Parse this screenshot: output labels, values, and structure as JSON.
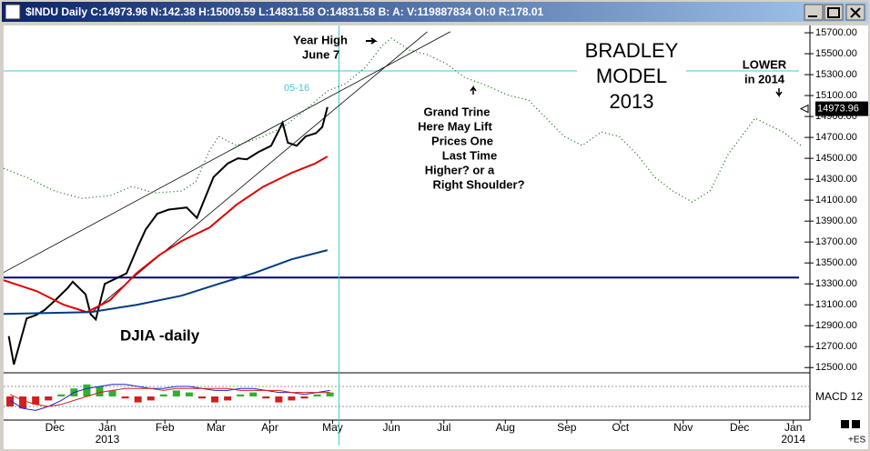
{
  "chart_data": {
    "type": "line",
    "title": "$INDU Daily C:14973.96 N:142.38 H:15009.59 L:14831.58 O:14831.58 B: A: V:119887834 OI:0 R:178.01",
    "ylim": [
      12450,
      15770
    ],
    "yticks": [
      {
        "value": 12500,
        "label": "12500.00"
      },
      {
        "value": 12700,
        "label": "12700.00"
      },
      {
        "value": 12900,
        "label": "12900.00"
      },
      {
        "value": 13100,
        "label": "13100.00"
      },
      {
        "value": 13300,
        "label": "13300.00"
      },
      {
        "value": 13500,
        "label": "13500.00"
      },
      {
        "value": 13700,
        "label": "13700.00"
      },
      {
        "value": 13900,
        "label": "13900.00"
      },
      {
        "value": 14100,
        "label": "14100.00"
      },
      {
        "value": 14300,
        "label": "14300.00"
      },
      {
        "value": 14500,
        "label": "14500.00"
      },
      {
        "value": 14700,
        "label": "14700.00"
      },
      {
        "value": 14900,
        "label": "14900.00"
      },
      {
        "value": 15100,
        "label": "15100.00"
      },
      {
        "value": 15300,
        "label": "15300.00"
      },
      {
        "value": 15500,
        "label": "15500.00"
      },
      {
        "value": 15700,
        "label": "15700.00"
      }
    ],
    "xlim": [
      0,
      63
    ],
    "xticks": [
      {
        "value": 4.0,
        "label": "Dec"
      },
      {
        "value": 8.1,
        "label": "Jan"
      },
      {
        "value": 12.6,
        "label": "Feb"
      },
      {
        "value": 16.6,
        "label": "Mar"
      },
      {
        "value": 20.8,
        "label": "Apr"
      },
      {
        "value": 25.7,
        "label": "May"
      },
      {
        "value": 30.3,
        "label": "Jun"
      },
      {
        "value": 34.4,
        "label": "Jul"
      },
      {
        "value": 39.2,
        "label": "Aug"
      },
      {
        "value": 44.0,
        "label": "Sep"
      },
      {
        "value": 48.2,
        "label": "Oct"
      },
      {
        "value": 53.1,
        "label": "Nov"
      },
      {
        "value": 57.5,
        "label": "Dec"
      },
      {
        "value": 61.7,
        "label": "Jan"
      }
    ],
    "year_labels": [
      {
        "value": 8.1,
        "label": "2013"
      },
      {
        "value": 61.7,
        "label": "2014"
      }
    ],
    "last_price": {
      "value": 14973.96,
      "label": "14973.96"
    },
    "series": [
      {
        "color": "#000000",
        "x": [
          0.4,
          0.8,
          1.8,
          2.5,
          3.2,
          4.0,
          5.0,
          5.4,
          6.4,
          6.8,
          7.2,
          7.9,
          9.6,
          10.5,
          11.1,
          12.0,
          12.9,
          14.3,
          15.1,
          15.4,
          16.4,
          17.5,
          18.3,
          19.0,
          19.9,
          20.9,
          21.8,
          22.2,
          22.9,
          23.6,
          24.4,
          24.9,
          25.3
        ],
        "values": [
          12800,
          12530,
          12970,
          13000,
          13050,
          13140,
          13260,
          13320,
          13200,
          13010,
          12960,
          13300,
          13400,
          13660,
          13820,
          13970,
          14010,
          14030,
          13930,
          14020,
          14320,
          14450,
          14500,
          14490,
          14560,
          14620,
          14840,
          14650,
          14620,
          14710,
          14740,
          14800,
          14990
        ]
      },
      {
        "color": "#e00000",
        "x": [
          0.0,
          2.6,
          4.7,
          6.5,
          8.3,
          10.4,
          12.2,
          13.9,
          16.1,
          18.2,
          20.3,
          22.5,
          24.3,
          25.3
        ],
        "values": [
          13335,
          13230,
          13100,
          13030,
          13143,
          13404,
          13578,
          13709,
          13839,
          14057,
          14230,
          14361,
          14448,
          14517
        ]
      },
      {
        "color": "#003a80",
        "x": [
          0.0,
          6.8,
          10.4,
          13.9,
          16.8,
          19.6,
          22.5,
          25.3
        ],
        "values": [
          13013,
          13030,
          13100,
          13187,
          13300,
          13404,
          13535,
          13622
        ]
      },
      {
        "color": "#006000",
        "dotted": true,
        "x": [
          0,
          1.8,
          4,
          6.1,
          8.3,
          10,
          11.8,
          13.9,
          15,
          16.1,
          16.8,
          18.2,
          20.3,
          21.8,
          23.2,
          25.3,
          26.7,
          28.2,
          29.6,
          30.3,
          31.7,
          33.1,
          34.6,
          36,
          37.4,
          39.5,
          41,
          42.4,
          43.8,
          45.2,
          46.7,
          48.1,
          49.5,
          50.9,
          52.3,
          53.8,
          55.2,
          56.6,
          58.7,
          60.9,
          62.3
        ],
        "values": [
          14404,
          14317,
          14187,
          14117,
          14143,
          14230,
          14170,
          14187,
          14274,
          14578,
          14709,
          14622,
          14709,
          14796,
          14926,
          15143,
          15213,
          15361,
          15578,
          15648,
          15535,
          15491,
          15404,
          15274,
          15213,
          15100,
          15057,
          14883,
          14709,
          14622,
          14752,
          14709,
          14535,
          14317,
          14187,
          14083,
          14187,
          14535,
          14883,
          14752,
          14622
        ]
      }
    ],
    "hlines": [
      {
        "value": 13360,
        "color": "#00007a"
      },
      {
        "value": 15335,
        "color": "#40c8d8"
      }
    ],
    "vline": {
      "value": 26.2,
      "color": "#40c8d8"
    },
    "trendlines": [
      {
        "x": [
          0,
          34.9
        ],
        "values": [
          13410,
          15710
        ]
      },
      {
        "x": [
          6.8,
          33.1
        ],
        "values": [
          13020,
          15710
        ]
      }
    ],
    "macd": {
      "label": "MACD 12",
      "ylim": [
        -1,
        1
      ],
      "histogram": [
        -0.5,
        -0.6,
        -0.4,
        -0.2,
        0.1,
        0.4,
        0.6,
        0.5,
        0.3,
        -0.1,
        -0.3,
        -0.2,
        0.1,
        0.3,
        0.2,
        -0.1,
        -0.3,
        -0.2,
        0.1,
        0.2,
        -0.1,
        -0.3,
        -0.2,
        -0.1,
        0.1,
        0.2
      ],
      "macd_line": [
        -0.2,
        -0.6,
        -0.7,
        -0.5,
        -0.2,
        0.2,
        0.4,
        0.5,
        0.6,
        0.6,
        0.5,
        0.4,
        0.4,
        0.5,
        0.5,
        0.4,
        0.3,
        0.3,
        0.4,
        0.4,
        0.3,
        0.2,
        0.2,
        0.1,
        0.2,
        0.3
      ],
      "signal_line": [
        0.1,
        -0.2,
        -0.4,
        -0.5,
        -0.4,
        -0.2,
        0.0,
        0.2,
        0.3,
        0.4,
        0.4,
        0.4,
        0.3,
        0.4,
        0.4,
        0.4,
        0.4,
        0.4,
        0.3,
        0.3,
        0.3,
        0.3,
        0.2,
        0.2,
        0.2,
        0.2
      ]
    },
    "annotations": {
      "year_high": "Year High",
      "june": "June 7",
      "date_mark": "05-16",
      "trine": [
        "Grand Trine",
        "Here May Lift",
        "Prices One",
        "Last Time",
        "Higher? or a",
        "Right Shoulder?"
      ],
      "bradley": [
        "BRADLEY",
        "MODEL",
        "2013"
      ],
      "lower": [
        "LOWER",
        "in 2014"
      ],
      "djia": "DJIA -daily",
      "es": "+ES"
    }
  }
}
